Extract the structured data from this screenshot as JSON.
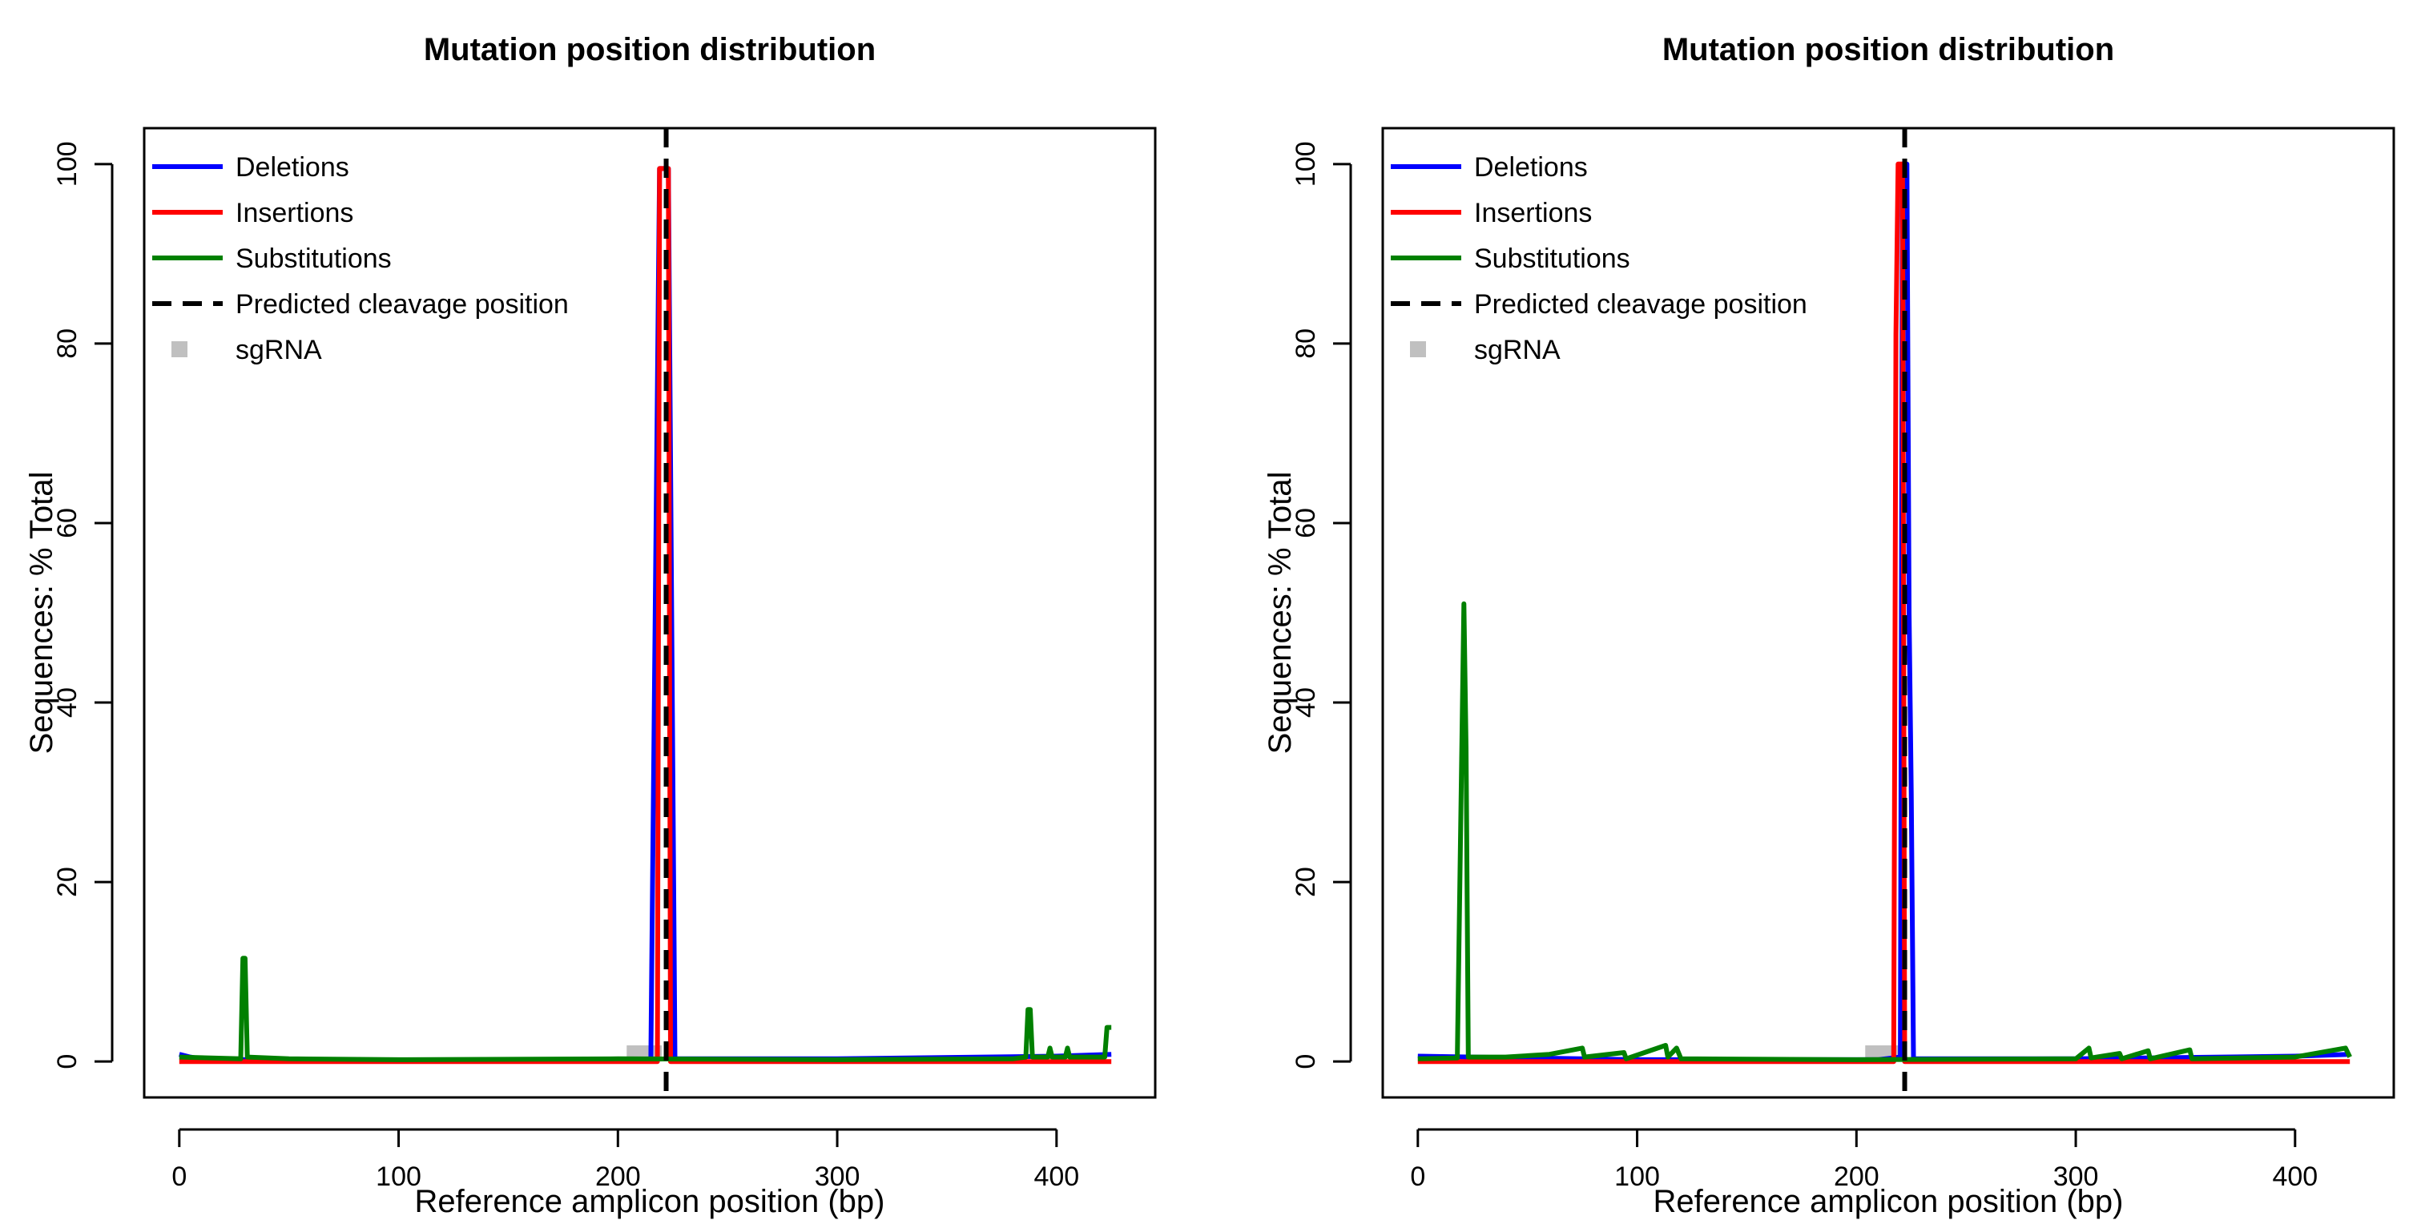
{
  "chart_data": [
    {
      "type": "line",
      "title": "Mutation position distribution",
      "xlabel": "Reference amplicon position (bp)",
      "ylabel": "Sequences: % Total",
      "xlim": [
        -16,
        445
      ],
      "ylim": [
        -4,
        104
      ],
      "xticks": [
        0,
        100,
        200,
        300,
        400
      ],
      "yticks": [
        0,
        20,
        40,
        60,
        80,
        100
      ],
      "xtick_labels": [
        "0",
        "100",
        "200",
        "300",
        "400"
      ],
      "ytick_labels": [
        "0",
        "20",
        "40",
        "60",
        "80",
        "100"
      ],
      "legend": {
        "position": "top-left",
        "entries": [
          {
            "label": "Deletions",
            "color": "#0000ff",
            "style": "line"
          },
          {
            "label": "Insertions",
            "color": "#ff0000",
            "style": "line"
          },
          {
            "label": "Substitutions",
            "color": "#008000",
            "style": "line"
          },
          {
            "label": "Predicted cleavage position",
            "color": "#000000",
            "style": "dashed"
          },
          {
            "label": "sgRNA",
            "color": "#c0c0c0",
            "style": "box"
          }
        ]
      },
      "cleavage_position": 222,
      "sgrna": {
        "start": 204,
        "end": 220,
        "height": 1.8,
        "color": "#c0c0c0"
      },
      "series": [
        {
          "name": "Deletions",
          "color": "#0000ff",
          "points": [
            [
              0,
              0.8
            ],
            [
              5,
              0.5
            ],
            [
              10,
              0.3
            ],
            [
              30,
              0.2
            ],
            [
              100,
              0.1
            ],
            [
              200,
              0.1
            ],
            [
              215,
              0.2
            ],
            [
              219,
              99.5
            ],
            [
              223,
              99.5
            ],
            [
              226,
              0.3
            ],
            [
              300,
              0.3
            ],
            [
              400,
              0.6
            ],
            [
              425,
              0.8
            ]
          ]
        },
        {
          "name": "Insertions",
          "color": "#ff0000",
          "points": [
            [
              0,
              0
            ],
            [
              218,
              0
            ],
            [
              219,
              99.5
            ],
            [
              223,
              99.5
            ],
            [
              224,
              0
            ],
            [
              425,
              0
            ]
          ]
        },
        {
          "name": "Substitutions",
          "color": "#008000",
          "points": [
            [
              0,
              0.5
            ],
            [
              28,
              0.3
            ],
            [
              29,
              11.5
            ],
            [
              30,
              11.5
            ],
            [
              31,
              0.5
            ],
            [
              50,
              0.3
            ],
            [
              100,
              0.2
            ],
            [
              200,
              0.3
            ],
            [
              300,
              0.2
            ],
            [
              380,
              0.3
            ],
            [
              386,
              0.5
            ],
            [
              387,
              5.8
            ],
            [
              388,
              5.8
            ],
            [
              389,
              0.5
            ],
            [
              396,
              0.5
            ],
            [
              397,
              1.5
            ],
            [
              398,
              0.5
            ],
            [
              404,
              0.5
            ],
            [
              405,
              1.5
            ],
            [
              406,
              0.5
            ],
            [
              422,
              0.5
            ],
            [
              423,
              3.8
            ],
            [
              425,
              3.8
            ]
          ]
        }
      ]
    },
    {
      "type": "line",
      "title": "Mutation position distribution",
      "xlabel": "Reference amplicon position (bp)",
      "ylabel": "Sequences: % Total",
      "xlim": [
        -16,
        445
      ],
      "ylim": [
        -4,
        104
      ],
      "xticks": [
        0,
        100,
        200,
        300,
        400
      ],
      "yticks": [
        0,
        20,
        40,
        60,
        80,
        100
      ],
      "xtick_labels": [
        "0",
        "100",
        "200",
        "300",
        "400"
      ],
      "ytick_labels": [
        "0",
        "20",
        "40",
        "60",
        "80",
        "100"
      ],
      "legend": {
        "position": "top-left",
        "entries": [
          {
            "label": "Deletions",
            "color": "#0000ff",
            "style": "line"
          },
          {
            "label": "Insertions",
            "color": "#ff0000",
            "style": "line"
          },
          {
            "label": "Substitutions",
            "color": "#008000",
            "style": "line"
          },
          {
            "label": "Predicted cleavage position",
            "color": "#000000",
            "style": "dashed"
          },
          {
            "label": "sgRNA",
            "color": "#c0c0c0",
            "style": "box"
          }
        ]
      },
      "cleavage_position": 222,
      "sgrna": {
        "start": 204,
        "end": 220,
        "height": 1.8,
        "color": "#c0c0c0"
      },
      "series": [
        {
          "name": "Deletions",
          "color": "#0000ff",
          "points": [
            [
              0,
              0.6
            ],
            [
              100,
              0.2
            ],
            [
              210,
              0.2
            ],
            [
              220,
              0.5
            ],
            [
              221,
              100
            ],
            [
              223,
              100
            ],
            [
              224,
              50
            ],
            [
              225,
              30
            ],
            [
              226,
              0.3
            ],
            [
              300,
              0.3
            ],
            [
              400,
              0.6
            ],
            [
              425,
              0.8
            ]
          ]
        },
        {
          "name": "Insertions",
          "color": "#ff0000",
          "points": [
            [
              0,
              0
            ],
            [
              217,
              0
            ],
            [
              218,
              81
            ],
            [
              219,
              100
            ],
            [
              221,
              100
            ],
            [
              222,
              0
            ],
            [
              425,
              0
            ]
          ]
        },
        {
          "name": "Substitutions",
          "color": "#008000",
          "points": [
            [
              0,
              0.3
            ],
            [
              18,
              0.4
            ],
            [
              21,
              51
            ],
            [
              22,
              35
            ],
            [
              23,
              0.5
            ],
            [
              40,
              0.5
            ],
            [
              60,
              0.8
            ],
            [
              75,
              1.5
            ],
            [
              76,
              0.5
            ],
            [
              94,
              1.0
            ],
            [
              95,
              0.3
            ],
            [
              113,
              1.8
            ],
            [
              114,
              0.5
            ],
            [
              118,
              1.5
            ],
            [
              120,
              0.3
            ],
            [
              200,
              0.2
            ],
            [
              300,
              0.3
            ],
            [
              306,
              1.5
            ],
            [
              307,
              0.4
            ],
            [
              320,
              0.9
            ],
            [
              321,
              0.3
            ],
            [
              333,
              1.2
            ],
            [
              334,
              0.3
            ],
            [
              352,
              1.3
            ],
            [
              353,
              0.3
            ],
            [
              400,
              0.5
            ],
            [
              423,
              1.5
            ],
            [
              425,
              0.5
            ]
          ]
        }
      ]
    }
  ]
}
